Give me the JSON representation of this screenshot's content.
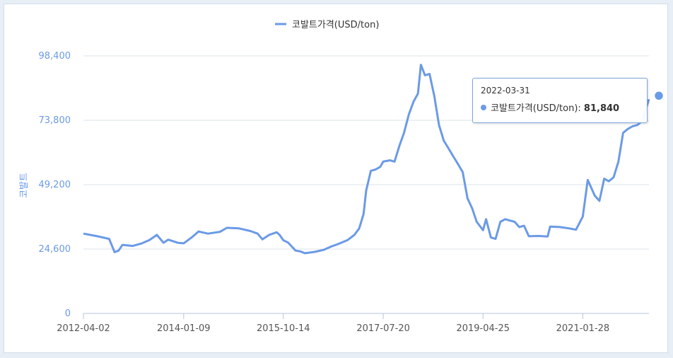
{
  "chart_data": {
    "type": "line",
    "legend": "top-center",
    "series": [
      {
        "name": "코발트가격(USD/ton)",
        "color": "#6b9ae6",
        "points": [
          [
            "2012-04-02",
            30500
          ],
          [
            "2012-07-01",
            29500
          ],
          [
            "2012-09-15",
            28500
          ],
          [
            "2012-10-20",
            23400
          ],
          [
            "2012-11-15",
            24000
          ],
          [
            "2012-12-10",
            26200
          ],
          [
            "2013-02-15",
            25800
          ],
          [
            "2013-04-15",
            26800
          ],
          [
            "2013-06-01",
            28000
          ],
          [
            "2013-07-20",
            30000
          ],
          [
            "2013-09-01",
            27000
          ],
          [
            "2013-10-01",
            28200
          ],
          [
            "2013-12-01",
            27000
          ],
          [
            "2014-01-09",
            26800
          ],
          [
            "2014-03-01",
            29000
          ],
          [
            "2014-04-15",
            31300
          ],
          [
            "2014-06-15",
            30500
          ],
          [
            "2014-09-01",
            31200
          ],
          [
            "2014-10-15",
            32700
          ],
          [
            "2015-01-01",
            32500
          ],
          [
            "2015-03-15",
            31500
          ],
          [
            "2015-05-01",
            30500
          ],
          [
            "2015-06-01",
            28300
          ],
          [
            "2015-07-15",
            30000
          ],
          [
            "2015-09-01",
            31000
          ],
          [
            "2015-09-20",
            30000
          ],
          [
            "2015-10-14",
            28000
          ],
          [
            "2015-11-15",
            27000
          ],
          [
            "2016-01-01",
            24000
          ],
          [
            "2016-02-01",
            23700
          ],
          [
            "2016-03-01",
            23000
          ],
          [
            "2016-05-01",
            23500
          ],
          [
            "2016-07-01",
            24300
          ],
          [
            "2016-08-15",
            25500
          ],
          [
            "2016-10-01",
            26500
          ],
          [
            "2016-12-01",
            28000
          ],
          [
            "2017-01-15",
            30000
          ],
          [
            "2017-02-15",
            32500
          ],
          [
            "2017-03-15",
            38000
          ],
          [
            "2017-04-01",
            47000
          ],
          [
            "2017-05-01",
            54500
          ],
          [
            "2017-06-01",
            55000
          ],
          [
            "2017-07-01",
            56000
          ],
          [
            "2017-07-20",
            58000
          ],
          [
            "2017-09-01",
            58500
          ],
          [
            "2017-10-01",
            58000
          ],
          [
            "2017-11-01",
            64000
          ],
          [
            "2017-12-01",
            69000
          ],
          [
            "2018-01-01",
            76000
          ],
          [
            "2018-02-01",
            81000
          ],
          [
            "2018-03-01",
            84000
          ],
          [
            "2018-03-20",
            95000
          ],
          [
            "2018-04-15",
            91000
          ],
          [
            "2018-05-15",
            91500
          ],
          [
            "2018-06-15",
            83000
          ],
          [
            "2018-07-15",
            72000
          ],
          [
            "2018-08-15",
            66000
          ],
          [
            "2018-09-15",
            63000
          ],
          [
            "2018-10-15",
            60000
          ],
          [
            "2018-11-15",
            57000
          ],
          [
            "2018-12-15",
            54000
          ],
          [
            "2019-01-15",
            44000
          ],
          [
            "2019-02-15",
            40000
          ],
          [
            "2019-03-15",
            35000
          ],
          [
            "2019-04-25",
            31800
          ],
          [
            "2019-05-15",
            36000
          ],
          [
            "2019-06-15",
            29000
          ],
          [
            "2019-07-15",
            28500
          ],
          [
            "2019-08-15",
            35000
          ],
          [
            "2019-09-15",
            36000
          ],
          [
            "2019-10-15",
            35500
          ],
          [
            "2019-11-15",
            35000
          ],
          [
            "2019-12-15",
            33000
          ],
          [
            "2020-01-15",
            33500
          ],
          [
            "2020-02-15",
            29500
          ],
          [
            "2020-04-15",
            29600
          ],
          [
            "2020-06-15",
            29400
          ],
          [
            "2020-07-01",
            33200
          ],
          [
            "2020-09-01",
            33000
          ],
          [
            "2020-11-01",
            32500
          ],
          [
            "2020-12-15",
            32000
          ],
          [
            "2021-01-28",
            37000
          ],
          [
            "2021-03-01",
            51000
          ],
          [
            "2021-04-15",
            45000
          ],
          [
            "2021-05-15",
            43000
          ],
          [
            "2021-06-15",
            51500
          ],
          [
            "2021-07-15",
            50500
          ],
          [
            "2021-08-15",
            52000
          ],
          [
            "2021-09-15",
            58000
          ],
          [
            "2021-10-15",
            69000
          ],
          [
            "2021-11-15",
            70500
          ],
          [
            "2021-12-15",
            71500
          ],
          [
            "2022-01-15",
            72000
          ],
          [
            "2022-02-15",
            73500
          ],
          [
            "2022-03-31",
            81840
          ]
        ]
      }
    ],
    "xaxis": {
      "range": [
        "2012-04-02",
        "2022-03-31"
      ],
      "ticks": [
        "2012-04-02",
        "2014-01-09",
        "2015-10-14",
        "2017-07-20",
        "2019-04-25",
        "2021-01-28"
      ]
    },
    "yaxis": {
      "label": "코발트",
      "range": [
        0,
        98400
      ],
      "ticks": [
        0,
        24600,
        49200,
        73800,
        98400
      ],
      "tick_labels": [
        "0",
        "24,600",
        "49,200",
        "73,800",
        "98,400"
      ],
      "grid": true
    },
    "tooltip": {
      "date": "2022-03-31",
      "series": "코발트가격(USD/ton):",
      "value": "81,840"
    }
  }
}
